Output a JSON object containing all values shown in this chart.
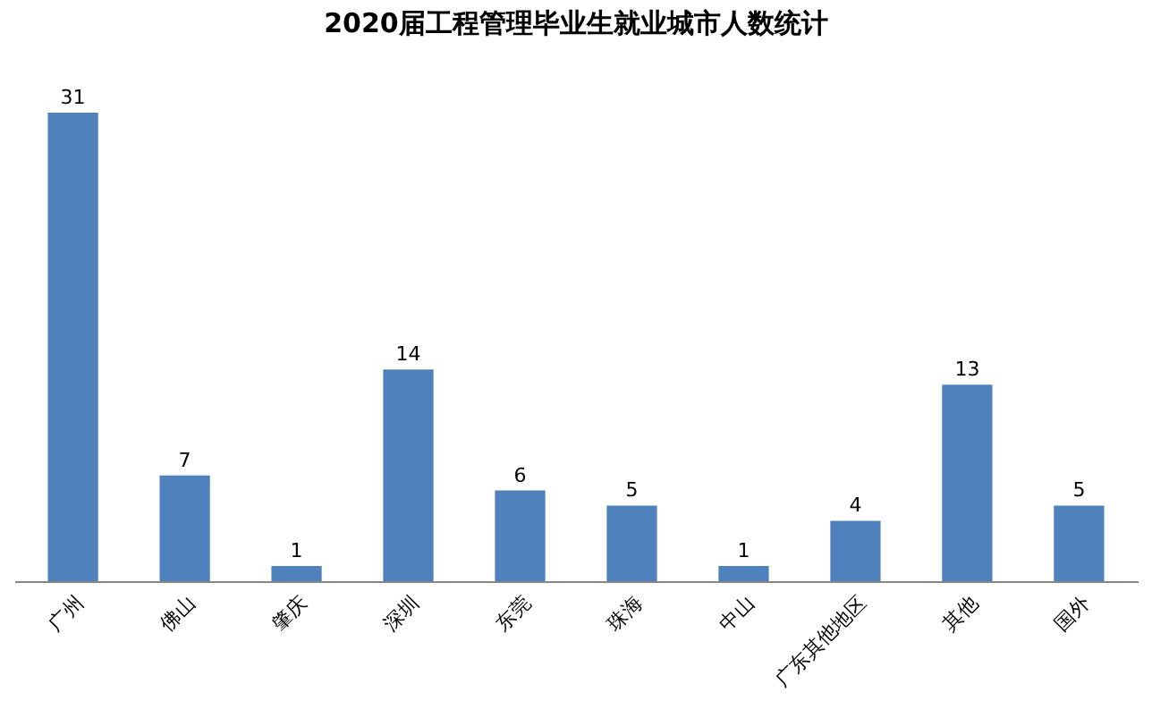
{
  "chart_data": {
    "type": "bar",
    "title": "2020届工程管理毕业生就业城市人数统计",
    "categories": [
      "广州",
      "佛山",
      "肇庆",
      "深圳",
      "东莞",
      "珠海",
      "中山",
      "广东其他地区",
      "其他",
      "国外"
    ],
    "values": [
      31,
      7,
      1,
      14,
      6,
      5,
      1,
      4,
      13,
      5
    ],
    "color": "#4f81bd",
    "data_labels": true,
    "grid": false,
    "tick_labels": "x"
  }
}
